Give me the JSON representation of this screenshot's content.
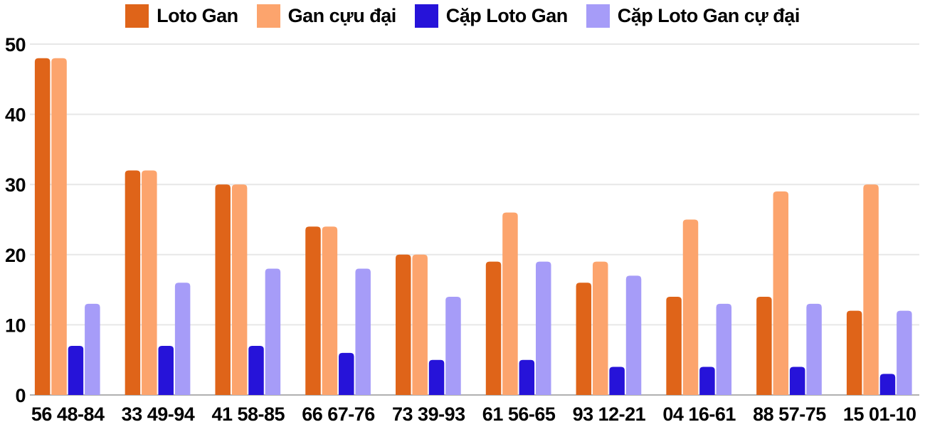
{
  "chart_data": {
    "type": "bar",
    "title": "",
    "xlabel": "",
    "ylabel": "",
    "categories": [
      "56 48-84",
      "33 49-94",
      "41 58-85",
      "66 67-76",
      "73 39-93",
      "61 56-65",
      "93 12-21",
      "04 16-61",
      "88 57-75",
      "15 01-10"
    ],
    "series": [
      {
        "name": "Loto Gan",
        "color": "#df6419",
        "values": [
          48,
          32,
          30,
          24,
          20,
          19,
          16,
          14,
          14,
          12
        ]
      },
      {
        "name": "Gan cựu đại",
        "color": "#fca46d",
        "values": [
          48,
          32,
          30,
          24,
          20,
          26,
          19,
          25,
          29,
          30
        ]
      },
      {
        "name": "Cặp Loto Gan",
        "color": "#2613d9",
        "values": [
          7,
          7,
          7,
          6,
          5,
          5,
          4,
          4,
          4,
          3
        ]
      },
      {
        "name": "Cặp Loto Gan cự đại",
        "color": "#a69cf8",
        "values": [
          13,
          16,
          18,
          18,
          14,
          19,
          17,
          13,
          13,
          12
        ]
      }
    ],
    "ylim": [
      0,
      50
    ],
    "yticks": [
      0,
      10,
      20,
      30,
      40,
      50
    ],
    "grid": true,
    "legend_position": "top",
    "colors": {
      "gridline": "#e7e7e7",
      "baseline": "#b0b0b0",
      "text": "#000000",
      "background": "#ffffff"
    }
  }
}
